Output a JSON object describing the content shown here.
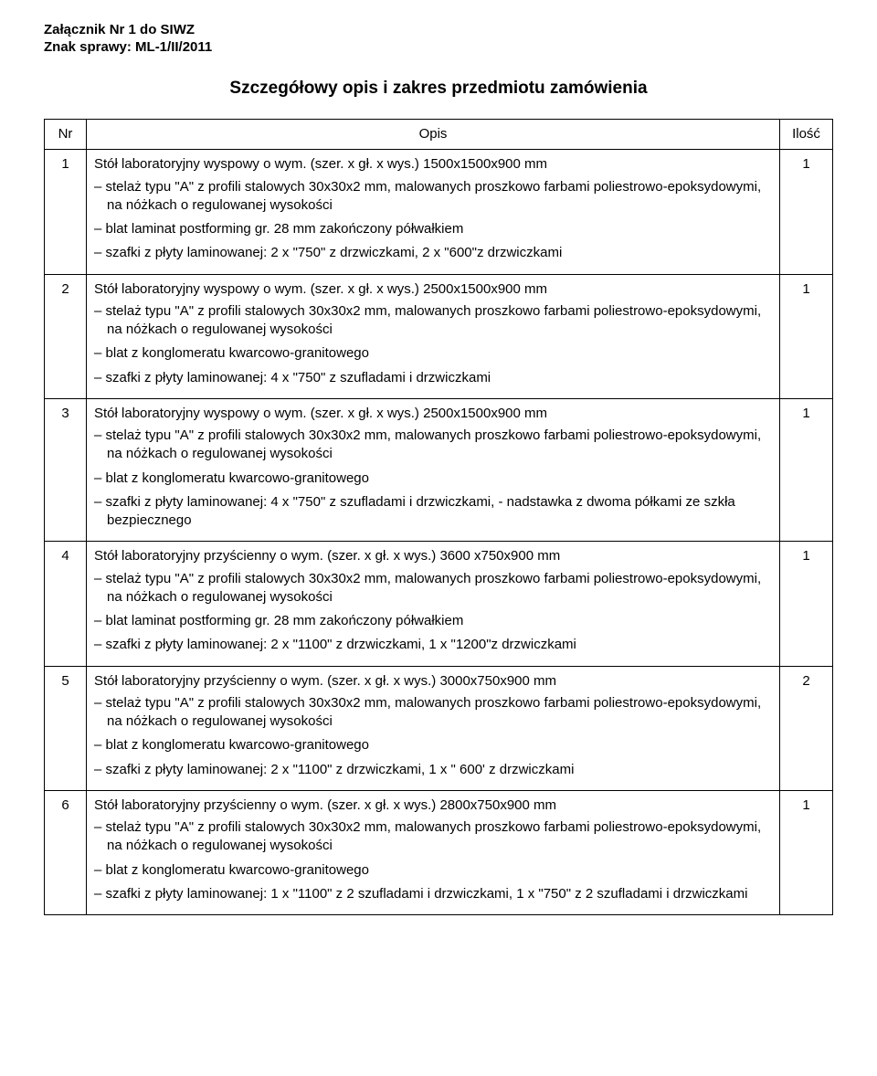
{
  "attachment_line": "Załącznik Nr 1 do SIWZ",
  "case_line": "Znak sprawy: ML-1/II/2011",
  "title": "Szczegółowy opis i zakres przedmiotu zamówienia",
  "columns": {
    "nr": "Nr",
    "opis": "Opis",
    "ilosc": "Ilość"
  },
  "rows": [
    {
      "nr": "1",
      "lead": "Stół laboratoryjny wyspowy o wym. (szer. x gł. x wys.) 1500x1500x900 mm",
      "bullets": [
        "stelaż typu \"A\" z profili stalowych 30x30x2 mm, malowanych proszkowo farbami poliestrowo-epoksydowymi, na nóżkach o regulowanej wysokości",
        "blat laminat postforming gr. 28 mm zakończony półwałkiem",
        "szafki z płyty laminowanej: 2 x \"750\" z drzwiczkami, 2 x \"600\"z drzwiczkami"
      ],
      "ilosc": "1"
    },
    {
      "nr": "2",
      "lead": "Stół laboratoryjny wyspowy o wym. (szer. x gł. x wys.) 2500x1500x900 mm",
      "bullets": [
        "stelaż typu \"A\" z profili stalowych 30x30x2 mm, malowanych proszkowo farbami poliestrowo-epoksydowymi, na nóżkach o regulowanej wysokości",
        "blat z konglomeratu kwarcowo-granitowego",
        "szafki z płyty laminowanej: 4 x \"750\" z szufladami i drzwiczkami"
      ],
      "ilosc": "1"
    },
    {
      "nr": "3",
      "lead": "Stół laboratoryjny wyspowy o wym. (szer. x gł. x wys.) 2500x1500x900 mm",
      "bullets": [
        "stelaż typu \"A\" z profili stalowych 30x30x2 mm, malowanych proszkowo farbami poliestrowo-epoksydowymi, na nóżkach o regulowanej wysokości",
        "blat z konglomeratu kwarcowo-granitowego",
        "szafki z płyty laminowanej: 4 x \"750\" z szufladami i drzwiczkami, - nadstawka z dwoma półkami ze szkła bezpiecznego"
      ],
      "ilosc": "1"
    },
    {
      "nr": "4",
      "lead": "Stół laboratoryjny przyścienny o wym. (szer. x gł. x wys.) 3600 x750x900 mm",
      "bullets": [
        "stelaż typu \"A\" z profili stalowych 30x30x2 mm, malowanych proszkowo farbami poliestrowo-epoksydowymi, na nóżkach o regulowanej wysokości",
        "blat laminat postforming gr. 28 mm zakończony półwałkiem",
        "szafki z płyty laminowanej: 2 x \"1100\" z drzwiczkami, 1 x \"1200\"z drzwiczkami"
      ],
      "ilosc": "1"
    },
    {
      "nr": "5",
      "lead": "Stół laboratoryjny przyścienny o wym. (szer. x gł. x wys.) 3000x750x900 mm",
      "bullets": [
        "stelaż typu \"A\" z profili stalowych 30x30x2 mm, malowanych proszkowo farbami poliestrowo-epoksydowymi, na nóżkach o regulowanej wysokości",
        "blat z konglomeratu kwarcowo-granitowego",
        "szafki z płyty laminowanej: 2 x \"1100\" z drzwiczkami, 1 x \" 600' z drzwiczkami"
      ],
      "ilosc": "2"
    },
    {
      "nr": "6",
      "lead": "Stół laboratoryjny przyścienny o wym. (szer. x gł. x wys.) 2800x750x900 mm",
      "bullets": [
        "stelaż typu \"A\" z profili stalowych 30x30x2 mm, malowanych proszkowo farbami poliestrowo-epoksydowymi, na nóżkach o regulowanej wysokości",
        "blat z konglomeratu kwarcowo-granitowego",
        "szafki z płyty laminowanej: 1 x \"1100\" z 2 szufladami i drzwiczkami, 1 x \"750\" z 2 szufladami i drzwiczkami"
      ],
      "ilosc": "1"
    }
  ]
}
